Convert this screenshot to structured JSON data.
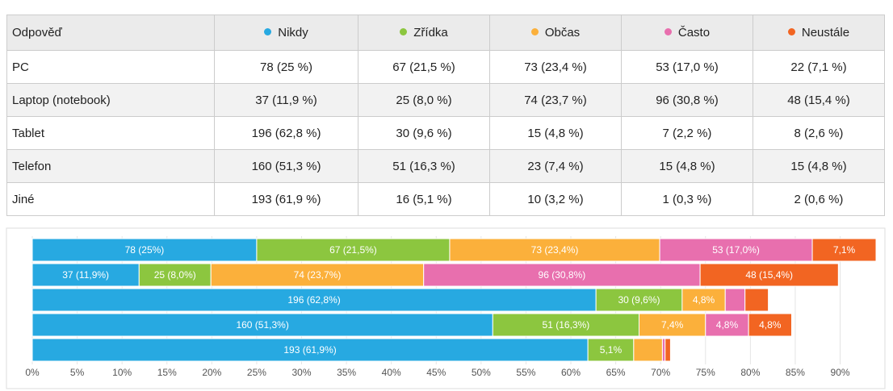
{
  "table": {
    "header": [
      "Odpověď"
    ],
    "rows": [
      [
        "78 (25 %)",
        "67 (21,5 %)",
        "73 (23,4 %)",
        "53 (17,0 %)",
        "22 (7,1 %)"
      ],
      [
        "37 (11,9 %)",
        "25 (8,0 %)",
        "74 (23,7 %)",
        "96 (30,8 %)",
        "48 (15,4 %)"
      ],
      [
        "196 (62,8 %)",
        "30 (9,6 %)",
        "15 (4,8 %)",
        "7 (2,2 %)",
        "8 (2,6 %)"
      ],
      [
        "160 (51,3 %)",
        "51 (16,3 %)",
        "23 (7,4 %)",
        "15 (4,8 %)",
        "15 (4,8 %)"
      ],
      [
        "193 (61,9 %)",
        "16 (5,1 %)",
        "10 (3,2 %)",
        "1 (0,3 %)",
        "2 (0,6 %)"
      ]
    ]
  },
  "chart_data": {
    "type": "stacked-bar-horizontal",
    "categories": [
      "PC",
      "Laptop (notebook)",
      "Tablet",
      "Telefon",
      "Jiné"
    ],
    "series": [
      {
        "name": "Nikdy",
        "color": "#27a9e1",
        "values": [
          25,
          11.9,
          62.8,
          51.3,
          61.9
        ],
        "value_labels": [
          "78 (25%)",
          "37 (11,9%)",
          "196 (62,8%)",
          "160 (51,3%)",
          "193 (61,9%)"
        ]
      },
      {
        "name": "Zřídka",
        "color": "#8cc63f",
        "values": [
          21.5,
          8.0,
          9.6,
          16.3,
          5.1
        ],
        "value_labels": [
          "67 (21,5%)",
          "25 (8,0%)",
          "30 (9,6%)",
          "51 (16,3%)",
          "5,1%"
        ]
      },
      {
        "name": "Občas",
        "color": "#fbb03b",
        "values": [
          23.4,
          23.7,
          4.8,
          7.4,
          3.2
        ],
        "value_labels": [
          "73 (23,4%)",
          "74 (23,7%)",
          "4,8%",
          "7,4%",
          null
        ]
      },
      {
        "name": "Často",
        "color": "#e86fae",
        "values": [
          17.0,
          30.8,
          2.2,
          4.8,
          0.3
        ],
        "value_labels": [
          "53 (17,0%)",
          "96 (30,8%)",
          null,
          "4,8%",
          null
        ]
      },
      {
        "name": "Neustále",
        "color": "#f26522",
        "values": [
          7.1,
          15.4,
          2.6,
          4.8,
          0.6
        ],
        "value_labels": [
          "7,1%",
          "48 (15,4%)",
          null,
          "4,8%",
          null
        ]
      }
    ],
    "xlim": [
      0,
      94
    ],
    "xticks": [
      {
        "value": 0,
        "label": "0%"
      },
      {
        "value": 5,
        "label": "5%"
      },
      {
        "value": 10,
        "label": "10%"
      },
      {
        "value": 15,
        "label": "15%"
      },
      {
        "value": 20,
        "label": "20%"
      },
      {
        "value": 25,
        "label": "25%"
      },
      {
        "value": 30,
        "label": "30%"
      },
      {
        "value": 35,
        "label": "35%"
      },
      {
        "value": 40,
        "label": "40%"
      },
      {
        "value": 45,
        "label": "45%"
      },
      {
        "value": 50,
        "label": "50%"
      },
      {
        "value": 55,
        "label": "55%"
      },
      {
        "value": 60,
        "label": "60%"
      },
      {
        "value": 65,
        "label": "65%"
      },
      {
        "value": 70,
        "label": "70%"
      },
      {
        "value": 75,
        "label": "75%"
      },
      {
        "value": 80,
        "label": "80%"
      },
      {
        "value": 85,
        "label": "85%"
      },
      {
        "value": 90,
        "label": "90%"
      }
    ],
    "grid": true
  }
}
